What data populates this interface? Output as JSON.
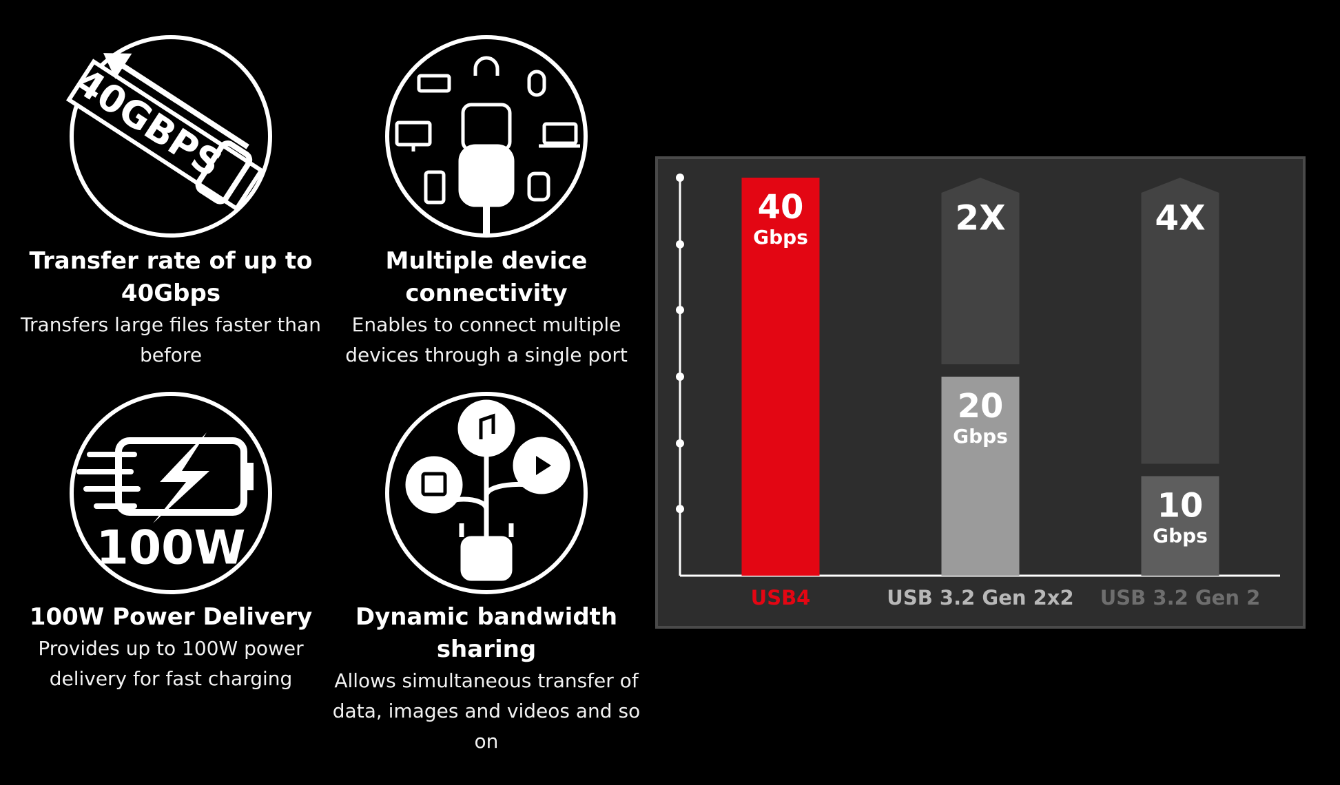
{
  "features": [
    {
      "icon_text": "40GBPS",
      "title": "Transfer rate of up to 40Gbps",
      "description": "Transfers large files faster than before"
    },
    {
      "title": "Multiple device connectivity",
      "description": "Enables to connect multiple devices through a single port"
    },
    {
      "icon_text": "100W",
      "title": "100W Power Delivery",
      "description": "Provides up to 100W power delivery for fast charging"
    },
    {
      "title": "Dynamic bandwidth sharing",
      "description": "Allows simultaneous transfer of data, images and videos and so on"
    }
  ],
  "chart_data": {
    "type": "bar",
    "categories": [
      "USB4",
      "USB 3.2 Gen 2x2",
      "USB 3.2 Gen 2"
    ],
    "values": [
      40,
      20,
      10
    ],
    "unit": "Gbps",
    "multipliers": [
      null,
      "2X",
      "4X"
    ],
    "colors": [
      "#e30613",
      "#9b9b9b",
      "#5e5e5e"
    ],
    "label_colors": [
      "#e30613",
      "#b8b8b8",
      "#6e6e6e"
    ],
    "ylim": [
      0,
      40
    ],
    "yticks": [
      6.7,
      13.3,
      20,
      26.7,
      33.3,
      40
    ]
  }
}
